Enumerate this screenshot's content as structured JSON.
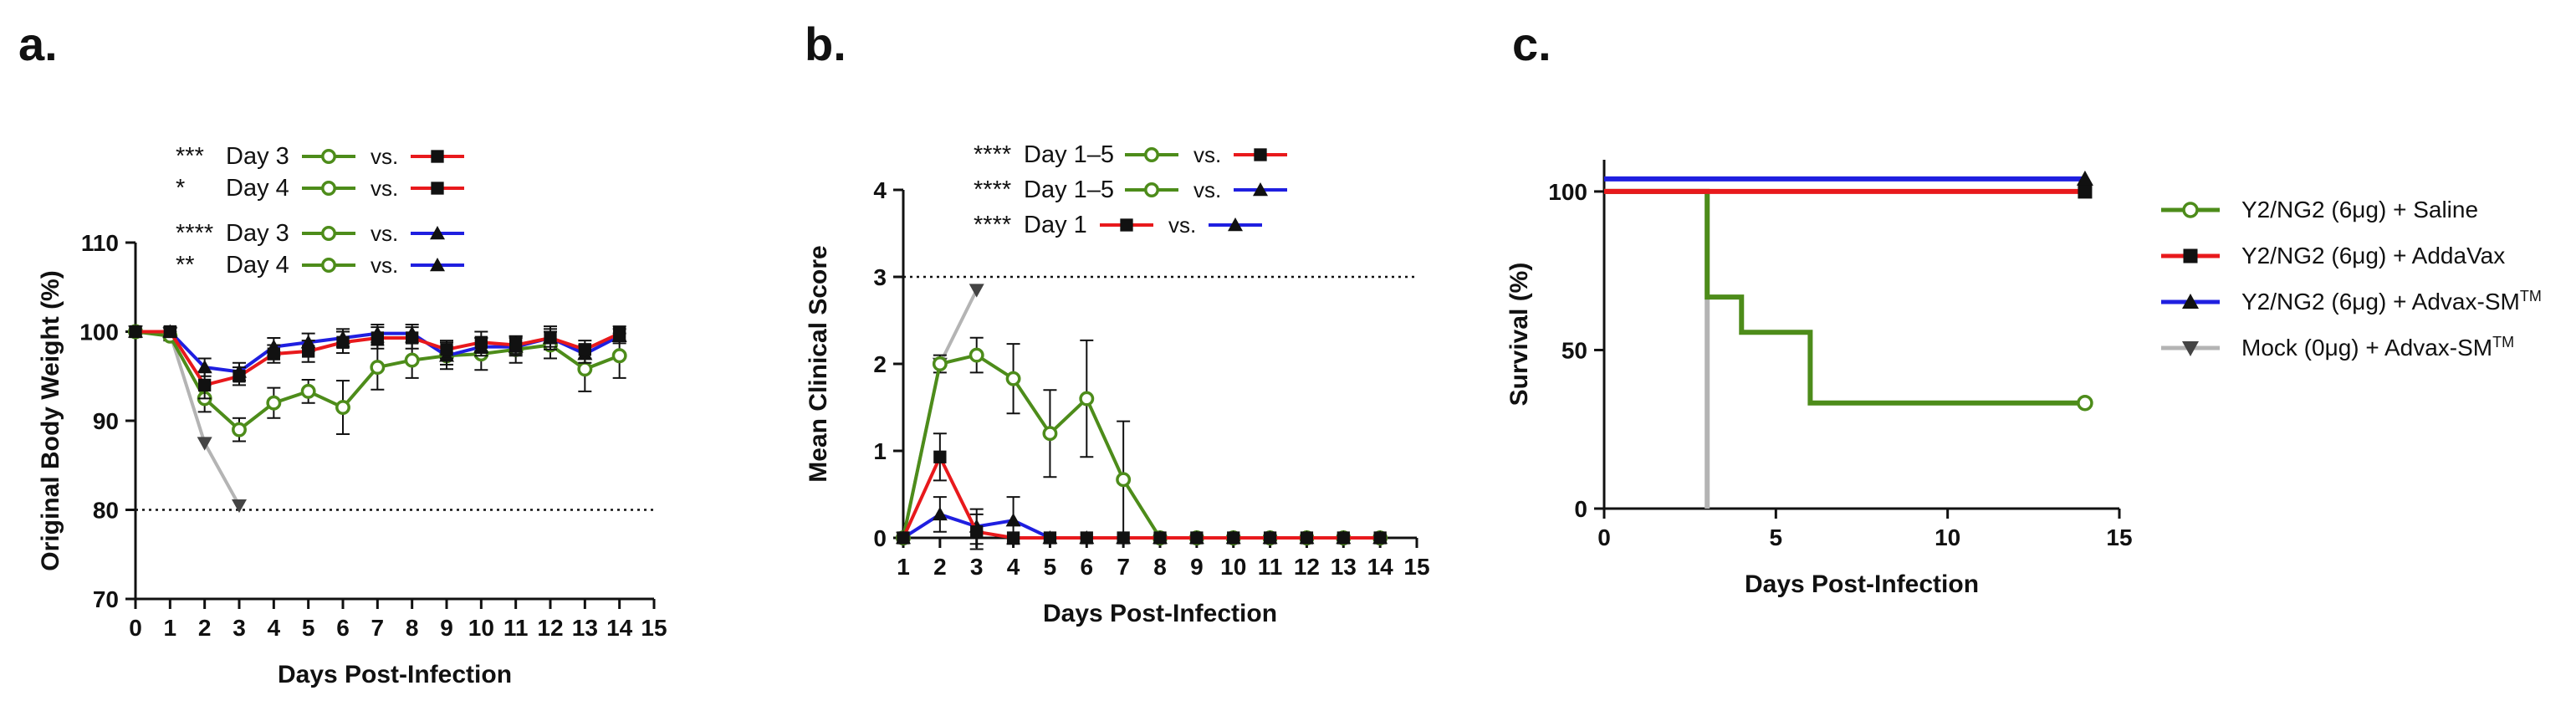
{
  "colors": {
    "green": "#4d8c1a",
    "red": "#e8191c",
    "blue": "#1f1fe0",
    "gray": "#b4b4b4",
    "black": "#111111"
  },
  "panel_labels": [
    "a.",
    "b.",
    "c."
  ],
  "panel_a": {
    "label": "a.",
    "stats": [
      {
        "sig": "***",
        "text": "Day 3",
        "vs": "vs.",
        "left": "green",
        "right": "red"
      },
      {
        "sig": "*",
        "text": "Day 4",
        "vs": "vs.",
        "left": "green",
        "right": "red"
      },
      {
        "sig": "****",
        "text": "Day 3",
        "vs": "vs.",
        "left": "green",
        "right": "blue"
      },
      {
        "sig": "**",
        "text": "Day 4",
        "vs": "vs.",
        "left": "green",
        "right": "blue"
      }
    ]
  },
  "panel_b": {
    "label": "b.",
    "stats": [
      {
        "sig": "****",
        "text": "Day 1–5",
        "vs": "vs.",
        "left": "green",
        "right": "red"
      },
      {
        "sig": "****",
        "text": "Day 1–5",
        "vs": "vs.",
        "left": "green",
        "right": "blue"
      },
      {
        "sig": "****",
        "text": "Day 1",
        "vs": "vs.",
        "left": "red",
        "right": "blue"
      }
    ]
  },
  "panel_c": {
    "label": "c.",
    "legend": [
      {
        "label": "Y2/NG2 (6μg) + Saline",
        "color": "green",
        "marker": "circle-open"
      },
      {
        "label": "Y2/NG2 (6μg) + AddaVax",
        "color": "red",
        "marker": "square"
      },
      {
        "label": "Y2/NG2 (6μg) + Advax-SM",
        "sup": "TM",
        "color": "blue",
        "marker": "triangle-up"
      },
      {
        "label": "Mock (0μg) + Advax-SM",
        "sup": "TM",
        "color": "gray",
        "marker": "triangle-down"
      }
    ]
  },
  "chart_data": [
    {
      "type": "line",
      "panel": "a.",
      "title": "",
      "xlabel": "Days Post-Infection",
      "ylabel": "Original Body Weight (%)",
      "xlim": [
        0,
        15
      ],
      "ylim": [
        70,
        110
      ],
      "xticks": [
        0,
        1,
        2,
        3,
        4,
        5,
        6,
        7,
        8,
        9,
        10,
        11,
        12,
        13,
        14,
        15
      ],
      "yticks": [
        70,
        80,
        90,
        100,
        110
      ],
      "reference_line": 80,
      "series": [
        {
          "color": "green",
          "marker": "circle-open",
          "x": [
            0,
            1,
            2,
            3,
            4,
            5,
            6,
            7,
            8,
            9,
            10,
            11,
            12,
            13,
            14
          ],
          "y": [
            100,
            99.5,
            92.5,
            89,
            92,
            93.3,
            91.5,
            96,
            96.8,
            97.3,
            97.5,
            98,
            98.5,
            95.8,
            97.3
          ],
          "err": [
            0,
            0.5,
            1.5,
            1.3,
            1.7,
            1.3,
            3,
            2.5,
            2,
            1.5,
            1.8,
            1.5,
            1.5,
            2.5,
            2.5
          ]
        },
        {
          "color": "red",
          "marker": "square",
          "x": [
            0,
            1,
            2,
            3,
            4,
            5,
            6,
            7,
            8,
            9,
            10,
            11,
            12,
            13,
            14
          ],
          "y": [
            100,
            100,
            94,
            95,
            97.5,
            97.8,
            98.8,
            99.3,
            99.3,
            98,
            98.8,
            98.5,
            99.3,
            98,
            99.8
          ],
          "err": [
            0,
            0.5,
            1.5,
            1,
            1,
            1.2,
            1.2,
            1.2,
            1.2,
            1,
            1.2,
            1,
            1.3,
            1,
            0.8
          ]
        },
        {
          "color": "blue",
          "marker": "triangle-up",
          "x": [
            0,
            1,
            2,
            3,
            4,
            5,
            6,
            7,
            8,
            9,
            10,
            11,
            12,
            13,
            14
          ],
          "y": [
            100,
            100,
            96,
            95.5,
            98.3,
            98.8,
            99.3,
            99.8,
            99.8,
            97.3,
            98.3,
            98.3,
            99.3,
            97.5,
            99.5
          ],
          "err": [
            0,
            0.5,
            1,
            1,
            1,
            1,
            1,
            1,
            1,
            1,
            1,
            1,
            1,
            1,
            0.8
          ]
        },
        {
          "color": "gray",
          "marker": "triangle-down",
          "x": [
            0,
            1,
            2,
            3
          ],
          "y": [
            100,
            99.8,
            87.5,
            80.5
          ],
          "err": [
            0,
            0,
            0,
            0
          ]
        }
      ]
    },
    {
      "type": "line",
      "panel": "b.",
      "title": "",
      "xlabel": "Days Post-Infection",
      "ylabel": "Mean Clinical Score",
      "xlim": [
        1,
        15
      ],
      "ylim": [
        0,
        4
      ],
      "xticks": [
        1,
        2,
        3,
        4,
        5,
        6,
        7,
        8,
        9,
        10,
        11,
        12,
        13,
        14,
        15
      ],
      "yticks": [
        0,
        1,
        2,
        3,
        4
      ],
      "reference_line": 3,
      "series": [
        {
          "color": "green",
          "marker": "circle-open",
          "x": [
            1,
            2,
            3,
            4,
            5,
            6,
            7,
            8,
            9,
            10,
            11,
            12,
            13,
            14
          ],
          "y": [
            0,
            2,
            2.1,
            1.83,
            1.2,
            1.6,
            0.67,
            0,
            0,
            0,
            0,
            0,
            0,
            0
          ],
          "err": [
            0,
            0.1,
            0.2,
            0.4,
            0.5,
            0.67,
            0.67,
            0,
            0,
            0,
            0,
            0,
            0,
            0
          ]
        },
        {
          "color": "red",
          "marker": "square",
          "x": [
            1,
            2,
            3,
            4,
            5,
            6,
            7,
            8,
            9,
            10,
            11,
            12,
            13,
            14
          ],
          "y": [
            0,
            0.93,
            0.07,
            0,
            0,
            0,
            0,
            0,
            0,
            0,
            0,
            0,
            0,
            0
          ],
          "err": [
            0,
            0.27,
            0.2,
            0,
            0,
            0,
            0,
            0,
            0,
            0,
            0,
            0,
            0,
            0
          ]
        },
        {
          "color": "blue",
          "marker": "triangle-up",
          "x": [
            1,
            2,
            3,
            4,
            5,
            6,
            7,
            8,
            9,
            10,
            11,
            12,
            13,
            14
          ],
          "y": [
            0,
            0.27,
            0.13,
            0.2,
            0,
            0,
            0,
            0,
            0,
            0,
            0,
            0,
            0,
            0
          ],
          "err": [
            0,
            0.2,
            0.2,
            0.27,
            0,
            0,
            0,
            0,
            0,
            0,
            0,
            0,
            0,
            0
          ]
        },
        {
          "color": "gray",
          "marker": "triangle-down",
          "x": [
            1,
            2,
            3
          ],
          "y": [
            0,
            2,
            2.85
          ],
          "err": [
            0,
            0,
            0
          ]
        }
      ]
    },
    {
      "type": "line",
      "panel": "c.",
      "title": "",
      "xlabel": "Days Post-Infection",
      "ylabel": "Survival (%)",
      "xlim": [
        0,
        15
      ],
      "ylim": [
        0,
        110
      ],
      "xticks": [
        0,
        5,
        10,
        15
      ],
      "yticks": [
        0,
        50,
        100
      ],
      "step": true,
      "series": [
        {
          "name": "Y2/NG2 (6μg) + Saline",
          "color": "green",
          "marker": "circle-open",
          "x": [
            0,
            3,
            4,
            6,
            14
          ],
          "y": [
            100,
            66.7,
            55.6,
            33.3,
            33.3
          ]
        },
        {
          "name": "Y2/NG2 (6μg) + AddaVax",
          "color": "red",
          "marker": "square",
          "x": [
            0,
            14
          ],
          "y": [
            100,
            100
          ]
        },
        {
          "name": "Y2/NG2 (6μg) + Advax-SM™",
          "color": "blue",
          "marker": "triangle-up",
          "x": [
            0,
            14
          ],
          "y": [
            100,
            100
          ]
        },
        {
          "name": "Mock (0μg) + Advax-SM™",
          "color": "gray",
          "marker": "triangle-down",
          "x": [
            0,
            3
          ],
          "y": [
            100,
            0
          ]
        }
      ]
    }
  ]
}
